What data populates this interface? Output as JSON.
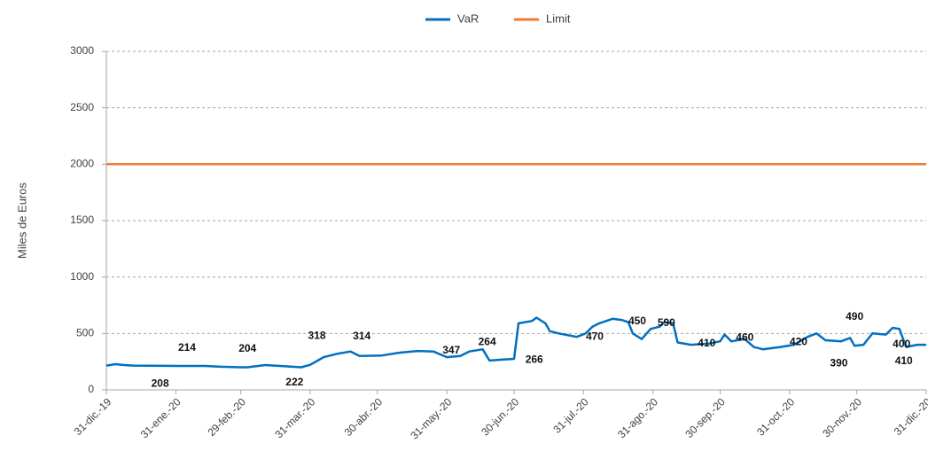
{
  "chart_data": {
    "type": "line",
    "y_axis_label": "Miles de Euros",
    "legend": "top",
    "grid": true,
    "ylim": [
      0,
      3000
    ],
    "yticks": [
      0,
      500,
      1000,
      1500,
      2000,
      2500,
      3000
    ],
    "xlim": [
      "2019-12-31",
      "2020-12-31"
    ],
    "xticks": [
      {
        "value": "2019-12-31",
        "label": "31-dic.-19"
      },
      {
        "value": "2020-01-31",
        "label": "31-ene.-20"
      },
      {
        "value": "2020-02-29",
        "label": "29-feb.-20"
      },
      {
        "value": "2020-03-31",
        "label": "31-mar.-20"
      },
      {
        "value": "2020-04-30",
        "label": "30-abr.-20"
      },
      {
        "value": "2020-05-31",
        "label": "31-may.-20"
      },
      {
        "value": "2020-06-30",
        "label": "30-jun.-20"
      },
      {
        "value": "2020-07-31",
        "label": "31-jul.-20"
      },
      {
        "value": "2020-08-31",
        "label": "31-ago.-20"
      },
      {
        "value": "2020-09-30",
        "label": "30-sep.-20"
      },
      {
        "value": "2020-10-31",
        "label": "31-oct.-20"
      },
      {
        "value": "2020-11-30",
        "label": "30-nov.-20"
      },
      {
        "value": "2020-12-31",
        "label": "31-dic.-20"
      }
    ],
    "series": [
      {
        "name": "VaR",
        "color": "#0070c0",
        "x": [
          "2019-12-31",
          "2020-01-04",
          "2020-01-08",
          "2020-01-12",
          "2020-02-01",
          "2020-02-13",
          "2020-02-20",
          "2020-02-29",
          "2020-03-03",
          "2020-03-11",
          "2020-03-19",
          "2020-03-27",
          "2020-03-31",
          "2020-04-06",
          "2020-04-12",
          "2020-04-18",
          "2020-04-22",
          "2020-05-02",
          "2020-05-10",
          "2020-05-18",
          "2020-05-25",
          "2020-05-31",
          "2020-06-06",
          "2020-06-10",
          "2020-06-16",
          "2020-06-19",
          "2020-06-26",
          "2020-06-30",
          "2020-07-02",
          "2020-07-08",
          "2020-07-10",
          "2020-07-14",
          "2020-07-16",
          "2020-07-20",
          "2020-07-28",
          "2020-08-01",
          "2020-08-04",
          "2020-08-07",
          "2020-08-13",
          "2020-08-17",
          "2020-08-20",
          "2020-08-22",
          "2020-08-26",
          "2020-08-30",
          "2020-09-03",
          "2020-09-05",
          "2020-09-09",
          "2020-09-11",
          "2020-09-17",
          "2020-09-25",
          "2020-09-30",
          "2020-10-02",
          "2020-10-05",
          "2020-10-11",
          "2020-10-15",
          "2020-10-19",
          "2020-10-27",
          "2020-11-02",
          "2020-11-08",
          "2020-11-12",
          "2020-11-16",
          "2020-11-23",
          "2020-11-27",
          "2020-11-29",
          "2020-12-03",
          "2020-12-07",
          "2020-12-13",
          "2020-12-16",
          "2020-12-19",
          "2020-12-22",
          "2020-12-27",
          "2020-12-31"
        ],
        "values": [
          215,
          228,
          220,
          215,
          212,
          212,
          205,
          200,
          200,
          220,
          210,
          200,
          222,
          290,
          320,
          340,
          300,
          305,
          330,
          345,
          340,
          290,
          300,
          340,
          360,
          260,
          270,
          275,
          590,
          610,
          640,
          590,
          520,
          500,
          470,
          500,
          560,
          590,
          630,
          620,
          600,
          500,
          450,
          540,
          560,
          600,
          590,
          420,
          400,
          410,
          430,
          490,
          430,
          450,
          380,
          360,
          380,
          400,
          470,
          500,
          440,
          430,
          460,
          390,
          400,
          500,
          490,
          550,
          540,
          380,
          400,
          400
        ]
      },
      {
        "name": "Limit",
        "color": "#ed7d31",
        "x": [
          "2019-12-31",
          "2020-12-31"
        ],
        "values": [
          2000,
          2000
        ]
      }
    ],
    "annotations": [
      {
        "x": "2020-01-24",
        "value": 208,
        "position": "below"
      },
      {
        "x": "2020-02-05",
        "value": 214,
        "position": "above"
      },
      {
        "x": "2020-03-03",
        "value": 204,
        "position": "above"
      },
      {
        "x": "2020-03-24",
        "value": 222,
        "position": "below"
      },
      {
        "x": "2020-04-03",
        "value": 318,
        "position": "above"
      },
      {
        "x": "2020-04-23",
        "value": 314,
        "position": "above"
      },
      {
        "x": "2020-06-02",
        "value": 347,
        "position": "center"
      },
      {
        "x": "2020-06-18",
        "value": 264,
        "position": "above"
      },
      {
        "x": "2020-07-09",
        "value": 266,
        "position": "center"
      },
      {
        "x": "2020-08-05",
        "value": 470,
        "position": "center"
      },
      {
        "x": "2020-08-24",
        "value": 450,
        "position": "above"
      },
      {
        "x": "2020-09-06",
        "value": 590,
        "position": "center"
      },
      {
        "x": "2020-09-24",
        "value": 410,
        "position": "center"
      },
      {
        "x": "2020-10-11",
        "value": 460,
        "position": "center"
      },
      {
        "x": "2020-11-04",
        "value": 420,
        "position": "center"
      },
      {
        "x": "2020-11-22",
        "value": 390,
        "position": "below"
      },
      {
        "x": "2020-11-29",
        "value": 490,
        "position": "above"
      },
      {
        "x": "2020-12-20",
        "value": 400,
        "position": "center"
      },
      {
        "x": "2020-12-21",
        "value": 410,
        "position": "below"
      }
    ]
  }
}
